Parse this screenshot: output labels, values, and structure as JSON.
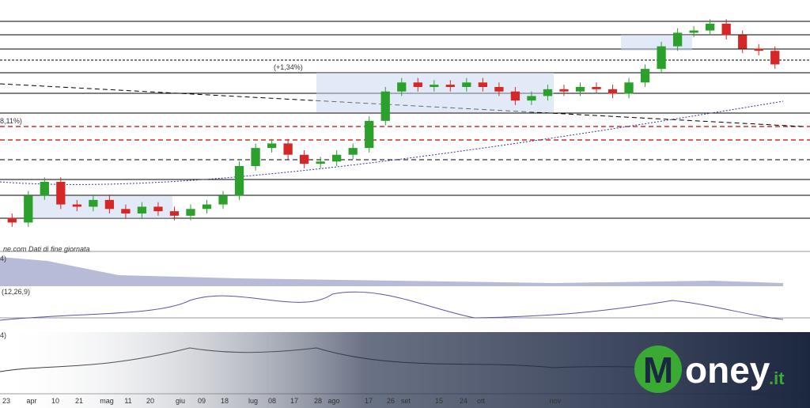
{
  "chart_data": {
    "type": "candlestick",
    "source_note": "ne.com  Dati di fine giornata",
    "annotations": [
      "(+1,34%)",
      "8,11%)"
    ],
    "indicator_labels": [
      "4)",
      "(12,26,9)",
      "4)"
    ],
    "logo": {
      "initial": "M",
      "rest": "oney",
      ".it": ".it"
    },
    "ylim": [
      0,
      105
    ],
    "up_color": "#2ca02c",
    "down_color": "#d62728",
    "x_labels": [
      "23",
      "apr",
      "10",
      "21",
      "mag",
      "11",
      "20",
      "giu",
      "09",
      "18",
      "lug",
      "08",
      "17",
      "28",
      "ago",
      "17",
      "26",
      "set",
      "15",
      "24",
      "ott",
      "nov"
    ],
    "open": [
      12,
      10,
      22,
      28,
      18,
      17,
      20,
      16,
      14,
      17,
      15,
      13,
      16,
      18,
      22,
      35,
      43,
      45,
      40,
      36,
      37,
      40,
      43,
      55,
      68,
      72,
      70,
      71,
      70,
      72,
      70,
      68,
      64,
      66,
      69,
      68,
      70,
      69,
      67,
      72,
      78,
      88,
      94,
      95,
      98,
      93,
      87,
      86
    ],
    "high": [
      14,
      24,
      30,
      30,
      20,
      22,
      22,
      18,
      19,
      19,
      17,
      18,
      20,
      24,
      37,
      45,
      47,
      47,
      42,
      39,
      42,
      45,
      57,
      70,
      74,
      74,
      73,
      73,
      74,
      74,
      72,
      70,
      68,
      71,
      71,
      72,
      72,
      71,
      74,
      80,
      90,
      96,
      97,
      100,
      100,
      95,
      89,
      88
    ],
    "low": [
      8,
      8,
      20,
      16,
      15,
      15,
      14,
      12,
      12,
      13,
      11,
      11,
      14,
      16,
      20,
      33,
      41,
      38,
      34,
      34,
      35,
      38,
      41,
      53,
      66,
      68,
      68,
      68,
      68,
      68,
      66,
      62,
      62,
      64,
      66,
      66,
      67,
      65,
      65,
      70,
      76,
      86,
      92,
      93,
      91,
      85,
      84,
      78
    ],
    "close": [
      10,
      22,
      28,
      18,
      17,
      20,
      16,
      14,
      17,
      15,
      13,
      16,
      18,
      22,
      35,
      43,
      45,
      40,
      36,
      37,
      40,
      43,
      55,
      68,
      72,
      70,
      71,
      70,
      72,
      70,
      68,
      64,
      66,
      69,
      68,
      70,
      69,
      67,
      72,
      78,
      88,
      94,
      95,
      98,
      93,
      87,
      86,
      80
    ]
  }
}
